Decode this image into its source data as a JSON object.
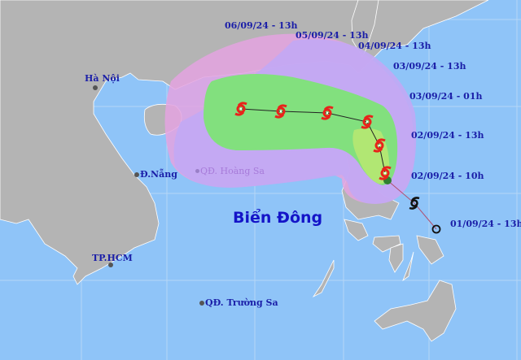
{
  "map": {
    "sea_name": "Biển Đông",
    "cities": [
      {
        "name": "Hà Nội"
      },
      {
        "name": "Đ.Nẵng"
      },
      {
        "name": "TP.HCM"
      }
    ],
    "islands": [
      {
        "name": "QĐ. Hoàng Sa"
      },
      {
        "name": "QĐ. Trường Sa"
      }
    ],
    "forecast_times": [
      "01/09/24 - 13h",
      "02/09/24 - 10h",
      "02/09/24 - 13h",
      "03/09/24 - 01h",
      "03/09/24 - 13h",
      "04/09/24 - 13h",
      "05/09/24 - 13h",
      "06/09/24 - 13h"
    ],
    "colors": {
      "sea": "#8fc4f8",
      "land": "#b4b4b4",
      "risk_zone_outer": "#e4a3e0",
      "risk_zone_purple": "#c2a8f4",
      "cone_green": "#82e07e",
      "cone_lime": "#b6e872",
      "storm_icon": "#e8231b",
      "past_track": "#222222"
    },
    "icons": [
      "typhoon-forecast-icon",
      "typhoon-current-icon",
      "past-position-circle-icon"
    ]
  }
}
